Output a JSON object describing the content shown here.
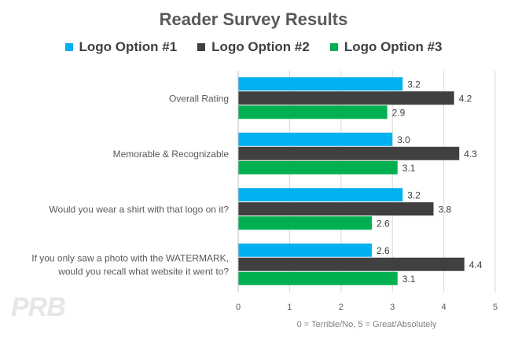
{
  "chart_data": {
    "type": "bar",
    "orientation": "horizontal",
    "title": "Reader Survey Results",
    "xlabel": "0 = Terrible/No, 5 = Great/Absolutely",
    "xlim": [
      0,
      5
    ],
    "x_ticks": [
      "0",
      "1",
      "2",
      "3",
      "4",
      "5"
    ],
    "grid": "vertical",
    "legend_position": "top",
    "categories": [
      [
        "Overall Rating"
      ],
      [
        "Memorable & Recognizable"
      ],
      [
        "Would you wear a shirt with that logo on it?"
      ],
      [
        "If you only saw a photo with the WATERMARK,",
        "would you recall what website it went to?"
      ]
    ],
    "series": [
      {
        "name": "Logo Option #1",
        "color": "#00b0f0",
        "values": [
          3.2,
          3.0,
          3.2,
          2.6
        ],
        "labels": [
          "3.2",
          "3.0",
          "3.2",
          "2.6"
        ]
      },
      {
        "name": "Logo Option #2",
        "color": "#404040",
        "values": [
          4.2,
          4.3,
          3.8,
          4.4
        ],
        "labels": [
          "4.2",
          "4.3",
          "3.8",
          "4.4"
        ]
      },
      {
        "name": "Logo Option #3",
        "color": "#00b050",
        "values": [
          2.9,
          3.1,
          2.6,
          3.1
        ],
        "labels": [
          "2.9",
          "3.1",
          "2.6",
          "3.1"
        ]
      }
    ]
  },
  "watermark": "PRB"
}
